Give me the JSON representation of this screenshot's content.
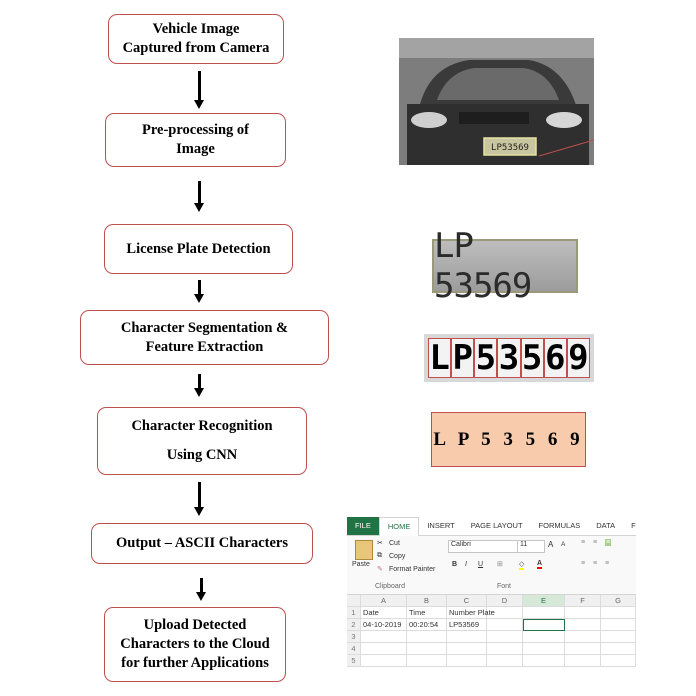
{
  "steps": [
    {
      "line1": "Vehicle Image",
      "line2": "Captured from Camera"
    },
    {
      "line1": "Pre-processing of",
      "line2": "Image"
    },
    {
      "line1": "License Plate Detection"
    },
    {
      "line1": "Character Segmentation &",
      "line2": "Feature Extraction"
    },
    {
      "line1": "Character Recognition",
      "line2": "Using CNN"
    },
    {
      "line1": "Output – ASCII Characters"
    },
    {
      "line1": "Upload Detected",
      "line2": "Characters to the Cloud",
      "line3": "for further Applications"
    }
  ],
  "plate_photo_text": "LP53569",
  "plate_crop_text": "LP 53569",
  "segmented_chars": [
    "L",
    "P",
    "5",
    "3",
    "5",
    "6",
    "9"
  ],
  "recognized_text": "L P 5 3 5 6 9",
  "excel": {
    "tabs": [
      "FILE",
      "HOME",
      "INSERT",
      "PAGE LAYOUT",
      "FORMULAS",
      "DATA",
      "F"
    ],
    "clipboard": {
      "paste": "Paste",
      "cut": "Cut",
      "copy": "Copy",
      "format_painter": "Format Painter",
      "group": "Clipboard"
    },
    "font": {
      "name": "Calibri",
      "size": "11",
      "grow": "A",
      "shrink": "A",
      "group": "Font",
      "bold": "B",
      "italic": "I",
      "underline": "U"
    },
    "columns": [
      "A",
      "B",
      "C",
      "D",
      "E",
      "F",
      "G"
    ],
    "rows": [
      {
        "num": "1",
        "cells": [
          "Date",
          "Time",
          "Number Plate",
          "",
          "",
          "",
          ""
        ]
      },
      {
        "num": "2",
        "cells": [
          "04-10-2019",
          "00:20:54",
          "LP53569",
          "",
          "",
          "",
          ""
        ]
      },
      {
        "num": "3",
        "cells": [
          "",
          "",
          "",
          "",
          "",
          "",
          ""
        ]
      },
      {
        "num": "4",
        "cells": [
          "",
          "",
          "",
          "",
          "",
          "",
          ""
        ]
      },
      {
        "num": "5",
        "cells": [
          "",
          "",
          "",
          "",
          "",
          "",
          ""
        ]
      }
    ]
  },
  "colors": {
    "box_border": "#c0504d",
    "result_fill": "#f8cbad",
    "excel_green": "#217346"
  }
}
